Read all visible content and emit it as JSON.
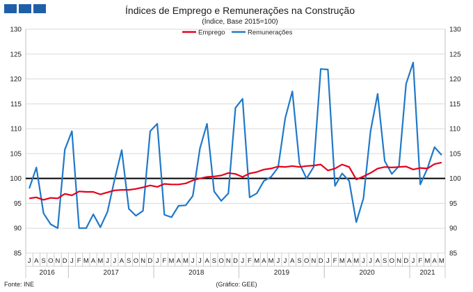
{
  "chart_data": {
    "type": "line",
    "title": "Índices de Emprego e Remunerações na Construção",
    "subtitle": "(Índice, Base 2015=100)",
    "ylim": [
      85,
      130
    ],
    "yticks": [
      85,
      90,
      95,
      100,
      105,
      110,
      115,
      120,
      125,
      130
    ],
    "reference_line": 100,
    "legend_position": "top-center",
    "grid": "horizontal",
    "x": [
      "2016-07",
      "2016-08",
      "2016-09",
      "2016-10",
      "2016-11",
      "2016-12",
      "2017-01",
      "2017-02",
      "2017-03",
      "2017-04",
      "2017-05",
      "2017-06",
      "2017-07",
      "2017-08",
      "2017-09",
      "2017-10",
      "2017-11",
      "2017-12",
      "2018-01",
      "2018-02",
      "2018-03",
      "2018-04",
      "2018-05",
      "2018-06",
      "2018-07",
      "2018-08",
      "2018-09",
      "2018-10",
      "2018-11",
      "2018-12",
      "2019-01",
      "2019-02",
      "2019-03",
      "2019-04",
      "2019-05",
      "2019-06",
      "2019-07",
      "2019-08",
      "2019-09",
      "2019-10",
      "2019-11",
      "2019-12",
      "2020-01",
      "2020-02",
      "2020-03",
      "2020-04",
      "2020-05",
      "2020-06",
      "2020-07",
      "2020-08",
      "2020-09",
      "2020-10",
      "2020-11",
      "2020-12",
      "2021-01",
      "2021-02",
      "2021-03",
      "2021-04",
      "2021-05"
    ],
    "month_labels": [
      "J",
      "A",
      "S",
      "O",
      "N",
      "D",
      "J",
      "F",
      "M",
      "A",
      "M",
      "J",
      "J",
      "A",
      "S",
      "O",
      "N",
      "D",
      "J",
      "F",
      "M",
      "A",
      "M",
      "J",
      "J",
      "A",
      "S",
      "O",
      "N",
      "D",
      "J",
      "F",
      "M",
      "A",
      "M",
      "J",
      "J",
      "A",
      "S",
      "O",
      "N",
      "D",
      "J",
      "F",
      "M",
      "A",
      "M",
      "J",
      "J",
      "A",
      "S",
      "O",
      "N",
      "D",
      "J",
      "F",
      "M",
      "A",
      "M"
    ],
    "year_labels": [
      {
        "label": "2016",
        "start": 0,
        "end": 5
      },
      {
        "label": "2017",
        "start": 6,
        "end": 17
      },
      {
        "label": "2018",
        "start": 18,
        "end": 29
      },
      {
        "label": "2019",
        "start": 30,
        "end": 41
      },
      {
        "label": "2020",
        "start": 42,
        "end": 53
      },
      {
        "label": "2021",
        "start": 54,
        "end": 58
      }
    ],
    "series": [
      {
        "name": "Emprego",
        "color": "#e3001b",
        "values": [
          96.0,
          96.2,
          95.7,
          96.1,
          96.0,
          96.9,
          96.6,
          97.4,
          97.3,
          97.3,
          96.8,
          97.2,
          97.6,
          97.7,
          97.7,
          97.9,
          98.2,
          98.6,
          98.3,
          98.9,
          98.8,
          98.8,
          99.0,
          99.6,
          100.0,
          100.3,
          100.4,
          100.6,
          101.1,
          100.9,
          100.3,
          101.0,
          101.3,
          101.8,
          102.0,
          102.4,
          102.3,
          102.5,
          102.3,
          102.5,
          102.6,
          102.8,
          101.6,
          102.0,
          102.8,
          102.3,
          99.8,
          100.4,
          101.1,
          102.0,
          102.3,
          102.2,
          102.3,
          102.4,
          101.8,
          102.1,
          102.0,
          102.9,
          103.2
        ]
      },
      {
        "name": "Remunerações",
        "color": "#1f78c8",
        "values": [
          98.0,
          102.2,
          93.0,
          90.8,
          90.0,
          105.8,
          109.5,
          90.0,
          90.0,
          92.8,
          90.2,
          93.3,
          99.8,
          105.7,
          93.9,
          92.5,
          93.5,
          109.5,
          111.0,
          92.7,
          92.2,
          94.5,
          94.6,
          96.5,
          106.0,
          111.0,
          97.4,
          95.5,
          97.0,
          114.2,
          116.0,
          96.2,
          97.0,
          99.5,
          100.3,
          102.2,
          112.1,
          117.5,
          103.0,
          100.0,
          102.3,
          122.0,
          121.9,
          98.5,
          101.0,
          99.5,
          91.2,
          96.0,
          109.5,
          117.0,
          103.5,
          100.9,
          102.5,
          119.0,
          123.3,
          98.8,
          102.0,
          106.3,
          104.7
        ]
      }
    ],
    "source": "Fonte: INE",
    "credit": "(Gráfico: GEE)"
  }
}
